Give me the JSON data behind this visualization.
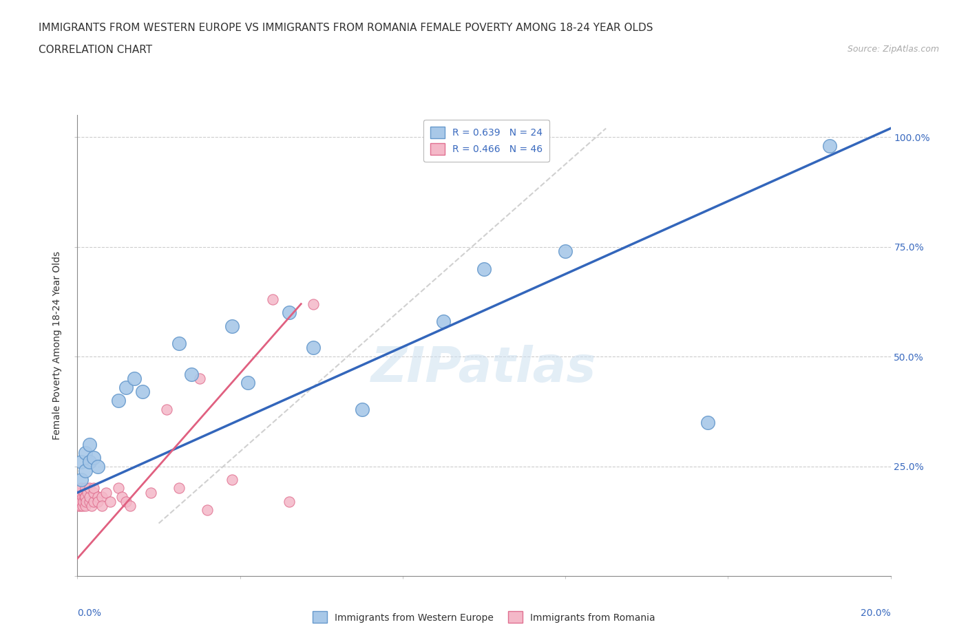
{
  "title_line1": "IMMIGRANTS FROM WESTERN EUROPE VS IMMIGRANTS FROM ROMANIA FEMALE POVERTY AMONG 18-24 YEAR OLDS",
  "title_line2": "CORRELATION CHART",
  "source_text": "Source: ZipAtlas.com",
  "ylabel": "Female Poverty Among 18-24 Year Olds",
  "watermark": "ZIPatlas",
  "blue_r": 0.639,
  "blue_n": 24,
  "pink_r": 0.466,
  "pink_n": 46,
  "blue_scatter_x": [
    0.001,
    0.001,
    0.002,
    0.002,
    0.003,
    0.003,
    0.004,
    0.005,
    0.01,
    0.012,
    0.014,
    0.016,
    0.025,
    0.028,
    0.038,
    0.042,
    0.052,
    0.058,
    0.07,
    0.09,
    0.1,
    0.12,
    0.155,
    0.185
  ],
  "blue_scatter_y": [
    0.22,
    0.26,
    0.24,
    0.28,
    0.26,
    0.3,
    0.27,
    0.25,
    0.4,
    0.43,
    0.45,
    0.42,
    0.53,
    0.46,
    0.57,
    0.44,
    0.6,
    0.52,
    0.38,
    0.58,
    0.7,
    0.74,
    0.35,
    0.98
  ],
  "pink_scatter_x": [
    0.0002,
    0.0003,
    0.0004,
    0.0005,
    0.0006,
    0.0007,
    0.0008,
    0.001,
    0.001,
    0.001,
    0.0012,
    0.0013,
    0.0015,
    0.0016,
    0.0018,
    0.002,
    0.002,
    0.002,
    0.0022,
    0.0025,
    0.003,
    0.003,
    0.003,
    0.0035,
    0.004,
    0.004,
    0.004,
    0.005,
    0.005,
    0.006,
    0.006,
    0.007,
    0.008,
    0.01,
    0.011,
    0.012,
    0.013,
    0.018,
    0.022,
    0.025,
    0.03,
    0.032,
    0.038,
    0.048,
    0.052,
    0.058
  ],
  "pink_scatter_y": [
    0.17,
    0.16,
    0.18,
    0.19,
    0.17,
    0.16,
    0.18,
    0.17,
    0.19,
    0.2,
    0.16,
    0.18,
    0.17,
    0.19,
    0.18,
    0.16,
    0.18,
    0.2,
    0.17,
    0.19,
    0.17,
    0.18,
    0.2,
    0.16,
    0.17,
    0.19,
    0.2,
    0.18,
    0.17,
    0.18,
    0.16,
    0.19,
    0.17,
    0.2,
    0.18,
    0.17,
    0.16,
    0.19,
    0.38,
    0.2,
    0.45,
    0.15,
    0.22,
    0.63,
    0.17,
    0.62
  ],
  "blue_color": "#a8c8e8",
  "blue_edge_color": "#6699cc",
  "pink_color": "#f4b8c8",
  "pink_edge_color": "#e07090",
  "blue_line_color": "#3366bb",
  "pink_line_color": "#e06080",
  "diagonal_color": "#d0d0d0",
  "xlim": [
    0.0,
    0.2
  ],
  "ylim": [
    0.0,
    1.05
  ],
  "legend_blue_label": "Immigrants from Western Europe",
  "legend_pink_label": "Immigrants from Romania",
  "title_fontsize": 11,
  "subtitle_fontsize": 11,
  "label_fontsize": 10,
  "legend_fontsize": 10,
  "tick_fontsize": 10,
  "annotation_color": "#3a6abf"
}
